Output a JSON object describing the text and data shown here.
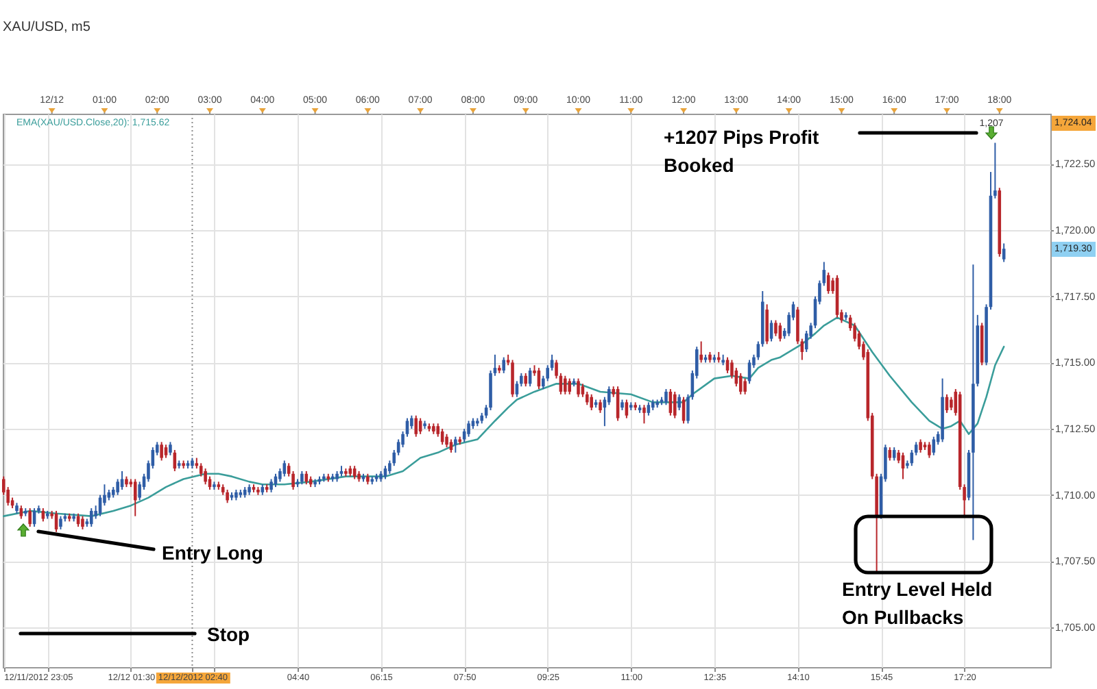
{
  "chart_data": {
    "type": "candlestick",
    "title": "XAU/USD, m5",
    "x": [
      "2012-12-11T23:05",
      "2012-12-11T23:10",
      "2012-12-11T23:15",
      "2012-12-11T23:20",
      "2012-12-11T23:25",
      "2012-12-11T23:30",
      "2012-12-11T23:35",
      "2012-12-11T23:40",
      "2012-12-11T23:45",
      "2012-12-11T23:50",
      "2012-12-11T23:55",
      "2012-12-12T00:00",
      "2012-12-12T00:05",
      "2012-12-12T00:10",
      "2012-12-12T00:15",
      "2012-12-12T00:20",
      "2012-12-12T00:25",
      "2012-12-12T00:30",
      "2012-12-12T00:35",
      "2012-12-12T00:40",
      "2012-12-12T00:45",
      "2012-12-12T00:50",
      "2012-12-12T00:55",
      "2012-12-12T01:00",
      "2012-12-12T01:05",
      "2012-12-12T01:10",
      "2012-12-12T01:15",
      "2012-12-12T01:20",
      "2012-12-12T01:25",
      "2012-12-12T01:30",
      "2012-12-12T01:35",
      "2012-12-12T01:40",
      "2012-12-12T01:45",
      "2012-12-12T01:50",
      "2012-12-12T01:55",
      "2012-12-12T02:00",
      "2012-12-12T02:05",
      "2012-12-12T02:10",
      "2012-12-12T02:15",
      "2012-12-12T02:20",
      "2012-12-12T02:25",
      "2012-12-12T02:30",
      "2012-12-12T02:35",
      "2012-12-12T02:40",
      "2012-12-12T02:45",
      "2012-12-12T02:50",
      "2012-12-12T02:55",
      "2012-12-12T03:00",
      "2012-12-12T03:05",
      "2012-12-12T03:10",
      "2012-12-12T03:15",
      "2012-12-12T03:20",
      "2012-12-12T03:25",
      "2012-12-12T03:30",
      "2012-12-12T03:35",
      "2012-12-12T03:40",
      "2012-12-12T03:45",
      "2012-12-12T03:50",
      "2012-12-12T03:55",
      "2012-12-12T04:00",
      "2012-12-12T04:05",
      "2012-12-12T04:10",
      "2012-12-12T04:15",
      "2012-12-12T04:20",
      "2012-12-12T04:25",
      "2012-12-12T04:30",
      "2012-12-12T04:35",
      "2012-12-12T04:40",
      "2012-12-12T04:45",
      "2012-12-12T04:50",
      "2012-12-12T04:55",
      "2012-12-12T05:00",
      "2012-12-12T05:05",
      "2012-12-12T05:10",
      "2012-12-12T05:15",
      "2012-12-12T05:20",
      "2012-12-12T05:25",
      "2012-12-12T05:30",
      "2012-12-12T05:35",
      "2012-12-12T05:40",
      "2012-12-12T05:45",
      "2012-12-12T05:50",
      "2012-12-12T05:55",
      "2012-12-12T06:00",
      "2012-12-12T06:05",
      "2012-12-12T06:10",
      "2012-12-12T06:15",
      "2012-12-12T06:20",
      "2012-12-12T06:25",
      "2012-12-12T06:30",
      "2012-12-12T06:35",
      "2012-12-12T06:40",
      "2012-12-12T06:45",
      "2012-12-12T06:50",
      "2012-12-12T06:55",
      "2012-12-12T07:00",
      "2012-12-12T07:05",
      "2012-12-12T07:10",
      "2012-12-12T07:15",
      "2012-12-12T07:20",
      "2012-12-12T07:25",
      "2012-12-12T07:30",
      "2012-12-12T07:35",
      "2012-12-12T07:40",
      "2012-12-12T07:45",
      "2012-12-12T07:50",
      "2012-12-12T07:55",
      "2012-12-12T08:00",
      "2012-12-12T08:05",
      "2012-12-12T08:10",
      "2012-12-12T08:15",
      "2012-12-12T08:20",
      "2012-12-12T08:25",
      "2012-12-12T08:30",
      "2012-12-12T08:35",
      "2012-12-12T08:40",
      "2012-12-12T08:45",
      "2012-12-12T08:50",
      "2012-12-12T08:55",
      "2012-12-12T09:00",
      "2012-12-12T09:05",
      "2012-12-12T09:10",
      "2012-12-12T09:15",
      "2012-12-12T09:20",
      "2012-12-12T09:25",
      "2012-12-12T09:30",
      "2012-12-12T09:35",
      "2012-12-12T09:40",
      "2012-12-12T09:45",
      "2012-12-12T09:50",
      "2012-12-12T09:55",
      "2012-12-12T10:00",
      "2012-12-12T10:05",
      "2012-12-12T10:10",
      "2012-12-12T10:15",
      "2012-12-12T10:20",
      "2012-12-12T10:25",
      "2012-12-12T10:30",
      "2012-12-12T10:35",
      "2012-12-12T10:40",
      "2012-12-12T10:45",
      "2012-12-12T10:50",
      "2012-12-12T10:55",
      "2012-12-12T11:00",
      "2012-12-12T11:05",
      "2012-12-12T11:10",
      "2012-12-12T11:15",
      "2012-12-12T11:20",
      "2012-12-12T11:25",
      "2012-12-12T11:30",
      "2012-12-12T11:35",
      "2012-12-12T11:40",
      "2012-12-12T11:45",
      "2012-12-12T11:50",
      "2012-12-12T11:55",
      "2012-12-12T12:00",
      "2012-12-12T12:05",
      "2012-12-12T12:10",
      "2012-12-12T12:15",
      "2012-12-12T12:20",
      "2012-12-12T12:25",
      "2012-12-12T12:30",
      "2012-12-12T12:35",
      "2012-12-12T12:40",
      "2012-12-12T12:45",
      "2012-12-12T12:50",
      "2012-12-12T12:55",
      "2012-12-12T13:00",
      "2012-12-12T13:05",
      "2012-12-12T13:10",
      "2012-12-12T13:15",
      "2012-12-12T13:20",
      "2012-12-12T13:25",
      "2012-12-12T13:30",
      "2012-12-12T13:35",
      "2012-12-12T13:40",
      "2012-12-12T13:45",
      "2012-12-12T13:50",
      "2012-12-12T13:55",
      "2012-12-12T14:00",
      "2012-12-12T14:05",
      "2012-12-12T14:10",
      "2012-12-12T14:15",
      "2012-12-12T14:20",
      "2012-12-12T14:25",
      "2012-12-12T14:30",
      "2012-12-12T14:35",
      "2012-12-12T14:40",
      "2012-12-12T14:45",
      "2012-12-12T14:50",
      "2012-12-12T14:55",
      "2012-12-12T15:00",
      "2012-12-12T15:05",
      "2012-12-12T15:10",
      "2012-12-12T15:15",
      "2012-12-12T15:20",
      "2012-12-12T15:25",
      "2012-12-12T15:30",
      "2012-12-12T15:35",
      "2012-12-12T15:40",
      "2012-12-12T15:45",
      "2012-12-12T15:50",
      "2012-12-12T15:55",
      "2012-12-12T16:00",
      "2012-12-12T16:05",
      "2012-12-12T16:10",
      "2012-12-12T16:15",
      "2012-12-12T16:20",
      "2012-12-12T16:25",
      "2012-12-12T16:30",
      "2012-12-12T16:35",
      "2012-12-12T16:40",
      "2012-12-12T16:45",
      "2012-12-12T16:50",
      "2012-12-12T16:55",
      "2012-12-12T17:00",
      "2012-12-12T17:05",
      "2012-12-12T17:10",
      "2012-12-12T17:15",
      "2012-12-12T17:20",
      "2012-12-12T17:25",
      "2012-12-12T17:30",
      "2012-12-12T17:35",
      "2012-12-12T17:40",
      "2012-12-12T17:45",
      "2012-12-12T17:50",
      "2012-12-12T17:55",
      "2012-12-12T18:00",
      "2012-12-12T18:05"
    ],
    "ohlc": [
      [
        1710.6,
        1710.7,
        1710.0,
        1710.1
      ],
      [
        1710.2,
        1710.3,
        1709.6,
        1709.7
      ],
      [
        1709.8,
        1709.9,
        1709.5,
        1709.6
      ],
      [
        1709.4,
        1709.7,
        1709.3,
        1709.6
      ],
      [
        1709.5,
        1709.6,
        1709.1,
        1709.2
      ],
      [
        1709.3,
        1709.5,
        1709.2,
        1709.4
      ],
      [
        1709.4,
        1709.5,
        1708.8,
        1708.9
      ],
      [
        1708.9,
        1709.5,
        1708.8,
        1709.4
      ],
      [
        1709.4,
        1709.6,
        1709.3,
        1709.5
      ],
      [
        1709.4,
        1709.5,
        1709.0,
        1709.1
      ],
      [
        1709.2,
        1709.4,
        1709.1,
        1709.3
      ],
      [
        1709.3,
        1709.4,
        1709.1,
        1709.2
      ],
      [
        1709.3,
        1709.4,
        1708.6,
        1708.7
      ],
      [
        1708.8,
        1709.2,
        1708.7,
        1709.1
      ],
      [
        1709.1,
        1709.3,
        1709.0,
        1709.2
      ],
      [
        1709.2,
        1709.3,
        1709.0,
        1709.1
      ],
      [
        1709.1,
        1709.3,
        1709.0,
        1709.2
      ],
      [
        1709.2,
        1709.3,
        1708.8,
        1708.9
      ],
      [
        1709.1,
        1709.2,
        1708.7,
        1708.8
      ],
      [
        1708.9,
        1709.1,
        1708.8,
        1709.0
      ],
      [
        1708.9,
        1709.5,
        1708.8,
        1709.4
      ],
      [
        1709.2,
        1709.6,
        1709.1,
        1709.4
      ],
      [
        1709.3,
        1710.0,
        1709.2,
        1709.9
      ],
      [
        1709.7,
        1710.4,
        1709.6,
        1710.0
      ],
      [
        1709.9,
        1710.2,
        1709.8,
        1710.1
      ],
      [
        1710.0,
        1710.3,
        1709.9,
        1710.2
      ],
      [
        1710.1,
        1710.6,
        1710.0,
        1710.5
      ],
      [
        1710.3,
        1710.9,
        1710.2,
        1710.6
      ],
      [
        1710.6,
        1710.7,
        1710.3,
        1710.4
      ],
      [
        1710.5,
        1710.6,
        1710.3,
        1710.4
      ],
      [
        1710.5,
        1710.6,
        1709.2,
        1709.8
      ],
      [
        1709.9,
        1710.5,
        1709.8,
        1710.4
      ],
      [
        1710.3,
        1710.8,
        1710.2,
        1710.7
      ],
      [
        1710.6,
        1711.3,
        1710.5,
        1711.2
      ],
      [
        1711.1,
        1711.8,
        1711.0,
        1711.7
      ],
      [
        1711.6,
        1712.0,
        1711.5,
        1711.9
      ],
      [
        1711.9,
        1712.0,
        1711.3,
        1711.4
      ],
      [
        1711.8,
        1711.9,
        1711.4,
        1711.5
      ],
      [
        1711.6,
        1712.0,
        1711.5,
        1711.9
      ],
      [
        1711.6,
        1711.7,
        1710.9,
        1711.0
      ],
      [
        1711.1,
        1711.3,
        1711.0,
        1711.2
      ],
      [
        1711.2,
        1711.3,
        1711.0,
        1711.1
      ],
      [
        1711.1,
        1711.3,
        1711.0,
        1711.2
      ],
      [
        1711.1,
        1711.4,
        1711.0,
        1711.3
      ],
      [
        1711.2,
        1711.4,
        1711.0,
        1711.1
      ],
      [
        1711.1,
        1711.2,
        1710.7,
        1710.8
      ],
      [
        1710.9,
        1711.0,
        1710.4,
        1710.5
      ],
      [
        1710.6,
        1710.7,
        1710.2,
        1710.3
      ],
      [
        1710.3,
        1710.5,
        1710.2,
        1710.4
      ],
      [
        1710.4,
        1710.5,
        1710.2,
        1710.3
      ],
      [
        1710.3,
        1710.4,
        1710.0,
        1710.1
      ],
      [
        1710.1,
        1710.2,
        1709.7,
        1709.8
      ],
      [
        1709.9,
        1710.1,
        1709.8,
        1710.0
      ],
      [
        1709.9,
        1710.2,
        1709.8,
        1710.1
      ],
      [
        1710.0,
        1710.2,
        1709.9,
        1710.1
      ],
      [
        1710.0,
        1710.3,
        1709.9,
        1710.2
      ],
      [
        1710.1,
        1710.4,
        1710.0,
        1710.3
      ],
      [
        1710.3,
        1710.4,
        1710.1,
        1710.2
      ],
      [
        1710.2,
        1710.3,
        1710.0,
        1710.1
      ],
      [
        1710.1,
        1710.4,
        1710.0,
        1710.3
      ],
      [
        1710.3,
        1710.4,
        1710.1,
        1710.2
      ],
      [
        1710.2,
        1710.6,
        1710.1,
        1710.5
      ],
      [
        1710.4,
        1710.8,
        1710.3,
        1710.7
      ],
      [
        1710.6,
        1711.0,
        1710.5,
        1710.9
      ],
      [
        1710.8,
        1711.3,
        1710.7,
        1711.2
      ],
      [
        1711.1,
        1711.2,
        1710.7,
        1710.8
      ],
      [
        1710.8,
        1710.9,
        1710.2,
        1710.3
      ],
      [
        1710.4,
        1710.6,
        1710.3,
        1710.5
      ],
      [
        1710.5,
        1710.9,
        1710.4,
        1710.8
      ],
      [
        1710.8,
        1710.9,
        1710.4,
        1710.5
      ],
      [
        1710.6,
        1710.7,
        1710.3,
        1710.4
      ],
      [
        1710.4,
        1710.6,
        1710.3,
        1710.5
      ],
      [
        1710.5,
        1710.7,
        1710.4,
        1710.6
      ],
      [
        1710.6,
        1710.8,
        1710.5,
        1710.7
      ],
      [
        1710.7,
        1710.8,
        1710.5,
        1710.6
      ],
      [
        1710.6,
        1710.8,
        1710.5,
        1710.7
      ],
      [
        1710.6,
        1710.9,
        1710.5,
        1710.8
      ],
      [
        1710.8,
        1711.1,
        1710.7,
        1710.9
      ],
      [
        1710.9,
        1711.0,
        1710.7,
        1710.8
      ],
      [
        1711.0,
        1711.1,
        1710.7,
        1710.8
      ],
      [
        1711.0,
        1711.1,
        1710.6,
        1710.7
      ],
      [
        1710.8,
        1710.9,
        1710.5,
        1710.6
      ],
      [
        1710.6,
        1710.8,
        1710.5,
        1710.7
      ],
      [
        1710.7,
        1710.8,
        1710.4,
        1710.5
      ],
      [
        1710.5,
        1710.7,
        1710.4,
        1710.6
      ],
      [
        1710.6,
        1710.8,
        1710.5,
        1710.7
      ],
      [
        1710.6,
        1710.9,
        1710.5,
        1710.8
      ],
      [
        1710.7,
        1711.1,
        1710.6,
        1711.0
      ],
      [
        1710.9,
        1711.3,
        1710.8,
        1711.2
      ],
      [
        1711.2,
        1711.7,
        1711.1,
        1711.6
      ],
      [
        1711.6,
        1712.1,
        1711.5,
        1712.0
      ],
      [
        1711.9,
        1712.4,
        1711.8,
        1712.3
      ],
      [
        1712.3,
        1712.9,
        1712.2,
        1712.8
      ],
      [
        1712.6,
        1713.0,
        1712.5,
        1712.9
      ],
      [
        1712.9,
        1713.0,
        1712.2,
        1712.3
      ],
      [
        1712.8,
        1712.9,
        1712.3,
        1712.4
      ],
      [
        1712.6,
        1712.8,
        1712.5,
        1712.7
      ],
      [
        1712.6,
        1712.7,
        1712.4,
        1712.5
      ],
      [
        1712.6,
        1712.7,
        1712.3,
        1712.4
      ],
      [
        1712.6,
        1712.7,
        1712.2,
        1712.3
      ],
      [
        1712.4,
        1712.5,
        1711.9,
        1712.0
      ],
      [
        1712.2,
        1712.3,
        1711.8,
        1711.9
      ],
      [
        1712.0,
        1712.1,
        1711.6,
        1711.7
      ],
      [
        1711.9,
        1712.2,
        1711.6,
        1712.1
      ],
      [
        1712.1,
        1712.2,
        1711.9,
        1712.0
      ],
      [
        1712.1,
        1712.5,
        1712.0,
        1712.4
      ],
      [
        1712.3,
        1712.8,
        1712.2,
        1712.7
      ],
      [
        1712.6,
        1712.9,
        1712.5,
        1712.8
      ],
      [
        1712.7,
        1712.9,
        1712.6,
        1712.8
      ],
      [
        1712.8,
        1713.1,
        1712.7,
        1713.0
      ],
      [
        1713.0,
        1713.4,
        1712.9,
        1713.3
      ],
      [
        1713.3,
        1714.7,
        1713.2,
        1714.6
      ],
      [
        1714.6,
        1715.3,
        1714.5,
        1714.8
      ],
      [
        1714.8,
        1714.9,
        1714.6,
        1714.7
      ],
      [
        1714.7,
        1715.2,
        1714.6,
        1715.1
      ],
      [
        1715.1,
        1715.3,
        1714.9,
        1715.0
      ],
      [
        1715.0,
        1715.1,
        1713.7,
        1713.8
      ],
      [
        1713.8,
        1714.3,
        1713.7,
        1714.2
      ],
      [
        1714.2,
        1714.6,
        1714.1,
        1714.5
      ],
      [
        1714.5,
        1714.6,
        1714.1,
        1714.2
      ],
      [
        1714.2,
        1714.8,
        1714.1,
        1714.7
      ],
      [
        1714.7,
        1714.9,
        1714.5,
        1714.6
      ],
      [
        1714.7,
        1714.8,
        1714.0,
        1714.1
      ],
      [
        1714.1,
        1714.5,
        1714.0,
        1714.4
      ],
      [
        1714.4,
        1714.9,
        1714.3,
        1714.8
      ],
      [
        1714.8,
        1715.3,
        1714.7,
        1715.1
      ],
      [
        1715.0,
        1715.1,
        1714.4,
        1714.5
      ],
      [
        1714.5,
        1714.6,
        1713.8,
        1713.9
      ],
      [
        1714.4,
        1714.5,
        1713.8,
        1713.9
      ],
      [
        1714.3,
        1714.4,
        1713.8,
        1713.9
      ],
      [
        1714.2,
        1714.4,
        1714.1,
        1714.3
      ],
      [
        1714.3,
        1714.4,
        1713.7,
        1713.8
      ],
      [
        1714.1,
        1714.2,
        1713.7,
        1713.8
      ],
      [
        1713.8,
        1713.9,
        1713.4,
        1713.5
      ],
      [
        1713.7,
        1713.8,
        1713.2,
        1713.3
      ],
      [
        1713.4,
        1713.6,
        1713.3,
        1713.5
      ],
      [
        1713.5,
        1713.6,
        1713.1,
        1713.2
      ],
      [
        1713.3,
        1713.7,
        1712.6,
        1713.6
      ],
      [
        1713.5,
        1714.1,
        1713.4,
        1714.0
      ],
      [
        1714.0,
        1714.1,
        1713.7,
        1713.8
      ],
      [
        1714.0,
        1714.1,
        1712.8,
        1712.9
      ],
      [
        1713.3,
        1713.6,
        1713.2,
        1713.5
      ],
      [
        1713.5,
        1713.6,
        1712.9,
        1713.0
      ],
      [
        1713.3,
        1713.5,
        1713.2,
        1713.4
      ],
      [
        1713.4,
        1713.5,
        1713.2,
        1713.3
      ],
      [
        1713.2,
        1713.4,
        1713.1,
        1713.3
      ],
      [
        1713.3,
        1713.4,
        1712.7,
        1713.1
      ],
      [
        1713.1,
        1713.5,
        1713.0,
        1713.4
      ],
      [
        1713.3,
        1713.6,
        1713.2,
        1713.5
      ],
      [
        1713.4,
        1713.6,
        1713.3,
        1713.5
      ],
      [
        1713.5,
        1713.7,
        1713.4,
        1713.6
      ],
      [
        1713.5,
        1714.0,
        1713.4,
        1713.9
      ],
      [
        1713.9,
        1714.0,
        1713.0,
        1713.1
      ],
      [
        1713.8,
        1713.9,
        1712.9,
        1713.0
      ],
      [
        1713.3,
        1713.8,
        1713.2,
        1713.7
      ],
      [
        1713.6,
        1713.7,
        1712.7,
        1712.8
      ],
      [
        1712.8,
        1713.8,
        1712.7,
        1713.7
      ],
      [
        1713.7,
        1714.7,
        1713.6,
        1714.6
      ],
      [
        1714.5,
        1715.6,
        1714.4,
        1715.5
      ],
      [
        1715.3,
        1715.8,
        1715.0,
        1715.1
      ],
      [
        1715.1,
        1715.3,
        1715.0,
        1715.2
      ],
      [
        1715.3,
        1715.4,
        1715.0,
        1715.1
      ],
      [
        1715.1,
        1715.3,
        1715.0,
        1715.2
      ],
      [
        1715.2,
        1715.4,
        1715.0,
        1715.1
      ],
      [
        1715.0,
        1715.3,
        1714.9,
        1715.1
      ],
      [
        1715.1,
        1715.2,
        1714.6,
        1714.7
      ],
      [
        1715.0,
        1715.1,
        1714.4,
        1714.5
      ],
      [
        1714.7,
        1714.8,
        1714.1,
        1714.2
      ],
      [
        1714.5,
        1714.6,
        1713.8,
        1713.9
      ],
      [
        1714.3,
        1714.4,
        1713.8,
        1713.9
      ],
      [
        1714.3,
        1715.1,
        1714.2,
        1715.0
      ],
      [
        1714.9,
        1715.3,
        1714.8,
        1715.2
      ],
      [
        1715.2,
        1715.8,
        1715.1,
        1715.7
      ],
      [
        1715.7,
        1717.7,
        1715.6,
        1717.3
      ],
      [
        1717.0,
        1717.2,
        1715.7,
        1715.8
      ],
      [
        1715.9,
        1716.6,
        1715.8,
        1716.5
      ],
      [
        1716.5,
        1716.6,
        1716.0,
        1716.1
      ],
      [
        1716.4,
        1716.5,
        1715.8,
        1715.9
      ],
      [
        1716.0,
        1716.3,
        1715.9,
        1716.2
      ],
      [
        1716.1,
        1716.9,
        1716.0,
        1716.8
      ],
      [
        1716.7,
        1717.3,
        1716.6,
        1717.2
      ],
      [
        1717.0,
        1717.1,
        1715.7,
        1715.8
      ],
      [
        1715.8,
        1715.9,
        1715.1,
        1715.4
      ],
      [
        1715.5,
        1716.2,
        1715.4,
        1716.1
      ],
      [
        1716.0,
        1716.5,
        1715.9,
        1716.4
      ],
      [
        1716.4,
        1717.5,
        1716.3,
        1717.4
      ],
      [
        1717.3,
        1718.1,
        1717.2,
        1718.0
      ],
      [
        1718.0,
        1718.8,
        1717.9,
        1718.5
      ],
      [
        1718.3,
        1718.4,
        1717.6,
        1717.7
      ],
      [
        1718.1,
        1718.2,
        1717.6,
        1717.7
      ],
      [
        1718.2,
        1718.3,
        1716.7,
        1716.8
      ],
      [
        1716.9,
        1717.0,
        1716.5,
        1716.6
      ],
      [
        1716.7,
        1716.9,
        1716.6,
        1716.8
      ],
      [
        1716.7,
        1716.8,
        1716.2,
        1716.3
      ],
      [
        1716.4,
        1716.5,
        1715.8,
        1715.9
      ],
      [
        1716.1,
        1716.2,
        1715.5,
        1715.6
      ],
      [
        1715.7,
        1715.8,
        1715.1,
        1715.2
      ],
      [
        1715.4,
        1715.5,
        1712.8,
        1712.9
      ],
      [
        1713.0,
        1713.1,
        1710.6,
        1710.7
      ],
      [
        1710.7,
        1710.8,
        1707.1,
        1709.2
      ],
      [
        1709.2,
        1710.8,
        1709.1,
        1710.7
      ],
      [
        1710.6,
        1711.9,
        1710.5,
        1711.8
      ],
      [
        1711.7,
        1711.8,
        1711.3,
        1711.4
      ],
      [
        1711.4,
        1711.8,
        1711.3,
        1711.7
      ],
      [
        1711.6,
        1711.7,
        1711.2,
        1711.3
      ],
      [
        1711.5,
        1711.6,
        1710.6,
        1711.0
      ],
      [
        1711.1,
        1711.3,
        1711.0,
        1711.2
      ],
      [
        1711.2,
        1711.7,
        1711.1,
        1711.6
      ],
      [
        1711.6,
        1712.0,
        1711.5,
        1711.9
      ],
      [
        1712.0,
        1712.1,
        1711.6,
        1711.7
      ],
      [
        1711.9,
        1712.0,
        1711.7,
        1711.8
      ],
      [
        1711.9,
        1712.0,
        1711.4,
        1711.5
      ],
      [
        1711.6,
        1712.2,
        1711.5,
        1712.1
      ],
      [
        1712.0,
        1712.4,
        1711.9,
        1712.3
      ],
      [
        1712.1,
        1714.4,
        1712.0,
        1713.7
      ],
      [
        1713.7,
        1713.8,
        1713.1,
        1713.2
      ],
      [
        1713.6,
        1713.7,
        1713.2,
        1713.3
      ],
      [
        1713.9,
        1714.0,
        1713.0,
        1713.1
      ],
      [
        1713.8,
        1713.9,
        1710.2,
        1710.3
      ],
      [
        1710.3,
        1710.4,
        1709.2,
        1709.8
      ],
      [
        1709.9,
        1711.7,
        1709.8,
        1711.6
      ],
      [
        1711.6,
        1718.7,
        1708.3,
        1714.2
      ],
      [
        1714.2,
        1716.8,
        1714.1,
        1716.4
      ],
      [
        1716.4,
        1716.5,
        1714.9,
        1715.0
      ],
      [
        1715.0,
        1717.2,
        1714.9,
        1717.1
      ],
      [
        1717.1,
        1722.2,
        1717.0,
        1721.3
      ],
      [
        1721.3,
        1723.3,
        1721.2,
        1721.5
      ],
      [
        1721.5,
        1721.6,
        1719.0,
        1719.1
      ],
      [
        1718.9,
        1719.5,
        1718.8,
        1719.3
      ]
    ],
    "colors": [
      "#b8262b",
      "#b8262b",
      "#b8262b",
      "#2f5da6",
      "#b8262b",
      "#2f5da6",
      "#b8262b",
      "#2f5da6",
      "#2f5da6",
      "#b8262b",
      "#2f5da6",
      "#b8262b",
      "#b8262b",
      "#2f5da6",
      "#2f5da6",
      "#b8262b",
      "#2f5da6",
      "#b8262b",
      "#b8262b",
      "#2f5da6",
      "#2f5da6",
      "#2f5da6",
      "#2f5da6",
      "#2f5da6",
      "#2f5da6",
      "#2f5da6",
      "#2f5da6",
      "#2f5da6",
      "#b8262b",
      "#b8262b",
      "#b8262b",
      "#2f5da6",
      "#2f5da6",
      "#2f5da6",
      "#2f5da6",
      "#2f5da6",
      "#b8262b",
      "#b8262b",
      "#2f5da6",
      "#b8262b",
      "#2f5da6",
      "#b8262b",
      "#2f5da6",
      "#2f5da6",
      "#b8262b",
      "#b8262b",
      "#b8262b",
      "#b8262b",
      "#2f5da6",
      "#b8262b",
      "#b8262b",
      "#b8262b",
      "#2f5da6",
      "#2f5da6",
      "#2f5da6",
      "#2f5da6",
      "#2f5da6",
      "#b8262b",
      "#b8262b",
      "#2f5da6",
      "#b8262b",
      "#2f5da6",
      "#2f5da6",
      "#2f5da6",
      "#2f5da6",
      "#b8262b",
      "#b8262b",
      "#2f5da6",
      "#2f5da6",
      "#b8262b",
      "#b8262b",
      "#2f5da6",
      "#2f5da6",
      "#2f5da6",
      "#b8262b",
      "#2f5da6",
      "#2f5da6",
      "#2f5da6",
      "#b8262b",
      "#b8262b",
      "#b8262b",
      "#b8262b",
      "#2f5da6",
      "#b8262b",
      "#2f5da6",
      "#2f5da6",
      "#2f5da6",
      "#2f5da6",
      "#2f5da6",
      "#2f5da6",
      "#2f5da6",
      "#2f5da6",
      "#2f5da6",
      "#2f5da6",
      "#b8262b",
      "#b8262b",
      "#2f5da6",
      "#b8262b",
      "#b8262b",
      "#b8262b",
      "#b8262b",
      "#b8262b",
      "#b8262b",
      "#2f5da6",
      "#b8262b",
      "#2f5da6",
      "#2f5da6",
      "#2f5da6",
      "#2f5da6",
      "#2f5da6",
      "#2f5da6",
      "#2f5da6",
      "#2f5da6",
      "#b8262b",
      "#2f5da6",
      "#b8262b",
      "#b8262b",
      "#2f5da6",
      "#2f5da6",
      "#b8262b",
      "#2f5da6",
      "#b8262b",
      "#b8262b",
      "#2f5da6",
      "#2f5da6",
      "#2f5da6",
      "#b8262b",
      "#b8262b",
      "#b8262b",
      "#b8262b",
      "#2f5da6",
      "#b8262b",
      "#b8262b",
      "#b8262b",
      "#b8262b",
      "#2f5da6",
      "#b8262b",
      "#2f5da6",
      "#2f5da6",
      "#b8262b",
      "#b8262b",
      "#2f5da6",
      "#b8262b",
      "#2f5da6",
      "#b8262b",
      "#2f5da6",
      "#b8262b",
      "#2f5da6",
      "#2f5da6",
      "#2f5da6",
      "#2f5da6",
      "#2f5da6",
      "#b8262b",
      "#b8262b",
      "#2f5da6",
      "#b8262b",
      "#2f5da6",
      "#2f5da6",
      "#2f5da6",
      "#b8262b",
      "#2f5da6",
      "#b8262b",
      "#2f5da6",
      "#b8262b",
      "#2f5da6",
      "#b8262b",
      "#b8262b",
      "#b8262b",
      "#b8262b",
      "#b8262b",
      "#2f5da6",
      "#2f5da6",
      "#2f5da6",
      "#2f5da6",
      "#b8262b",
      "#2f5da6",
      "#b8262b",
      "#b8262b",
      "#2f5da6",
      "#2f5da6",
      "#2f5da6",
      "#b8262b",
      "#b8262b",
      "#2f5da6",
      "#2f5da6",
      "#2f5da6",
      "#2f5da6",
      "#2f5da6",
      "#b8262b",
      "#b8262b",
      "#b8262b",
      "#b8262b",
      "#2f5da6",
      "#b8262b",
      "#b8262b",
      "#b8262b",
      "#b8262b",
      "#b8262b",
      "#b8262b",
      "#b8262b",
      "#2f5da6",
      "#2f5da6",
      "#b8262b",
      "#2f5da6",
      "#b8262b",
      "#b8262b",
      "#2f5da6",
      "#2f5da6",
      "#2f5da6",
      "#b8262b",
      "#b8262b",
      "#b8262b",
      "#2f5da6",
      "#2f5da6",
      "#2f5da6",
      "#b8262b",
      "#b8262b",
      "#b8262b",
      "#b8262b",
      "#b8262b",
      "#2f5da6",
      "#2f5da6",
      "#2f5da6",
      "#b8262b",
      "#2f5da6",
      "#2f5da6",
      "#2f5da6",
      "#b8262b",
      "#2f5da6"
    ],
    "series": [
      {
        "type": "line",
        "name": "EMA(XAU/USD.Close,20): 1,715.62",
        "color": "#3a9d9a",
        "x": [
          "2012-12-11T23:05",
          "2012-12-11T23:35",
          "2012-12-12T00:05",
          "2012-12-12T00:45",
          "2012-12-12T01:10",
          "2012-12-12T01:30",
          "2012-12-12T01:50",
          "2012-12-12T02:10",
          "2012-12-12T02:30",
          "2012-12-12T02:55",
          "2012-12-12T03:10",
          "2012-12-12T03:25",
          "2012-12-12T03:45",
          "2012-12-12T04:00",
          "2012-12-12T04:25",
          "2012-12-12T04:55",
          "2012-12-12T05:35",
          "2012-12-12T06:20",
          "2012-12-12T06:40",
          "2012-12-12T07:00",
          "2012-12-12T07:20",
          "2012-12-12T07:40",
          "2012-12-12T08:05",
          "2012-12-12T08:25",
          "2012-12-12T08:40",
          "2012-12-12T08:50",
          "2012-12-12T09:10",
          "2012-12-12T09:35",
          "2012-12-12T10:00",
          "2012-12-12T10:25",
          "2012-12-12T11:00",
          "2012-12-12T11:25",
          "2012-12-12T12:00",
          "2012-12-12T12:10",
          "2012-12-12T12:35",
          "2012-12-12T12:55",
          "2012-12-12T13:15",
          "2012-12-12T13:25",
          "2012-12-12T13:40",
          "2012-12-12T13:50",
          "2012-12-12T14:15",
          "2012-12-12T14:30",
          "2012-12-12T14:40",
          "2012-12-12T14:55",
          "2012-12-12T15:15",
          "2012-12-12T15:35",
          "2012-12-12T15:55",
          "2012-12-12T16:20",
          "2012-12-12T16:40",
          "2012-12-12T16:55",
          "2012-12-12T17:05",
          "2012-12-12T17:15",
          "2012-12-12T17:25",
          "2012-12-12T17:35",
          "2012-12-12T17:45",
          "2012-12-12T17:55",
          "2012-12-12T18:05"
        ],
        "values": [
          1709.2,
          1709.4,
          1709.3,
          1709.2,
          1709.4,
          1709.6,
          1709.9,
          1710.3,
          1710.6,
          1710.8,
          1710.8,
          1710.7,
          1710.5,
          1710.4,
          1710.4,
          1710.5,
          1710.7,
          1710.7,
          1710.9,
          1711.4,
          1711.6,
          1711.9,
          1712.1,
          1712.8,
          1713.3,
          1713.6,
          1713.9,
          1714.2,
          1714.2,
          1713.9,
          1713.8,
          1713.5,
          1713.5,
          1713.8,
          1714.4,
          1714.5,
          1714.4,
          1714.8,
          1715.1,
          1715.2,
          1715.7,
          1716.1,
          1716.4,
          1716.7,
          1716.4,
          1715.4,
          1714.5,
          1713.5,
          1712.8,
          1712.5,
          1712.6,
          1712.8,
          1712.3,
          1712.7,
          1713.7,
          1714.9,
          1715.6
        ]
      }
    ],
    "xlim": [
      "2012-12-11T23:04",
      "2012-12-12T18:58"
    ],
    "xticks": [
      {
        "value": "2012-12-11T23:05",
        "label": "12/11/2012 23:05"
      },
      {
        "value": "2012-12-11T23:55",
        "label": null
      },
      {
        "value": "2012-12-12T01:30",
        "label": "12/12 01:30"
      },
      {
        "value": "2012-12-12T02:40",
        "label": "12/12/2012 02:40"
      },
      {
        "value": "2012-12-12T03:05",
        "label": null
      },
      {
        "value": "2012-12-12T04:40",
        "label": "04:40"
      },
      {
        "value": "2012-12-12T06:15",
        "label": "06:15"
      },
      {
        "value": "2012-12-12T07:50",
        "label": "07:50"
      },
      {
        "value": "2012-12-12T09:25",
        "label": "09:25"
      },
      {
        "value": "2012-12-12T11:00",
        "label": "11:00"
      },
      {
        "value": "2012-12-12T12:35",
        "label": "12:35"
      },
      {
        "value": "2012-12-12T14:10",
        "label": "14:10"
      },
      {
        "value": "2012-12-12T15:45",
        "label": "15:45"
      },
      {
        "value": "2012-12-12T17:20",
        "label": "17:20"
      }
    ],
    "x2lim": [
      "2012-12-11T23:04",
      "2012-12-12T18:58"
    ],
    "x2ticks": [
      {
        "value": "2012-12-12T00:00",
        "label": "12/12"
      },
      {
        "value": "2012-12-12T01:00",
        "label": "01:00"
      },
      {
        "value": "2012-12-12T02:00",
        "label": "02:00"
      },
      {
        "value": "2012-12-12T03:00",
        "label": "03:00"
      },
      {
        "value": "2012-12-12T04:00",
        "label": "04:00"
      },
      {
        "value": "2012-12-12T05:00",
        "label": "05:00"
      },
      {
        "value": "2012-12-12T06:00",
        "label": "06:00"
      },
      {
        "value": "2012-12-12T07:00",
        "label": "07:00"
      },
      {
        "value": "2012-12-12T08:00",
        "label": "08:00"
      },
      {
        "value": "2012-12-12T09:00",
        "label": "09:00"
      },
      {
        "value": "2012-12-12T10:00",
        "label": "10:00"
      },
      {
        "value": "2012-12-12T11:00",
        "label": "11:00"
      },
      {
        "value": "2012-12-12T12:00",
        "label": "12:00"
      },
      {
        "value": "2012-12-12T13:00",
        "label": "13:00"
      },
      {
        "value": "2012-12-12T14:00",
        "label": "14:00"
      },
      {
        "value": "2012-12-12T15:00",
        "label": "15:00"
      },
      {
        "value": "2012-12-12T16:00",
        "label": "16:00"
      },
      {
        "value": "2012-12-12T17:00",
        "label": "17:00"
      },
      {
        "value": "2012-12-12T18:00",
        "label": "18:00"
      }
    ],
    "ylim": [
      1703.5,
      1724.4
    ],
    "yticks": [
      {
        "value": 1705,
        "label": "1,705.00"
      },
      {
        "value": 1707.5,
        "label": "1,707.50"
      },
      {
        "value": 1710,
        "label": "1,710.00"
      },
      {
        "value": 1712.5,
        "label": "1,712.50"
      },
      {
        "value": 1715,
        "label": "1,715.00"
      },
      {
        "value": 1717.5,
        "label": "1,717.50"
      },
      {
        "value": 1720,
        "label": "1,720.00"
      },
      {
        "value": 1722.5,
        "label": "1,722.50"
      }
    ],
    "grid": true,
    "legend": "top left",
    "ref_lines": [
      {
        "axis": "x",
        "value": "2012-12-12T02:40",
        "line_style": "dotted"
      }
    ],
    "annotations": [
      "+1207 Pips Profit Booked",
      "1,207",
      "Entry Long",
      "Stop",
      "Entry Level Held On Pullbacks",
      "1,724.04",
      "1,719.30"
    ]
  }
}
